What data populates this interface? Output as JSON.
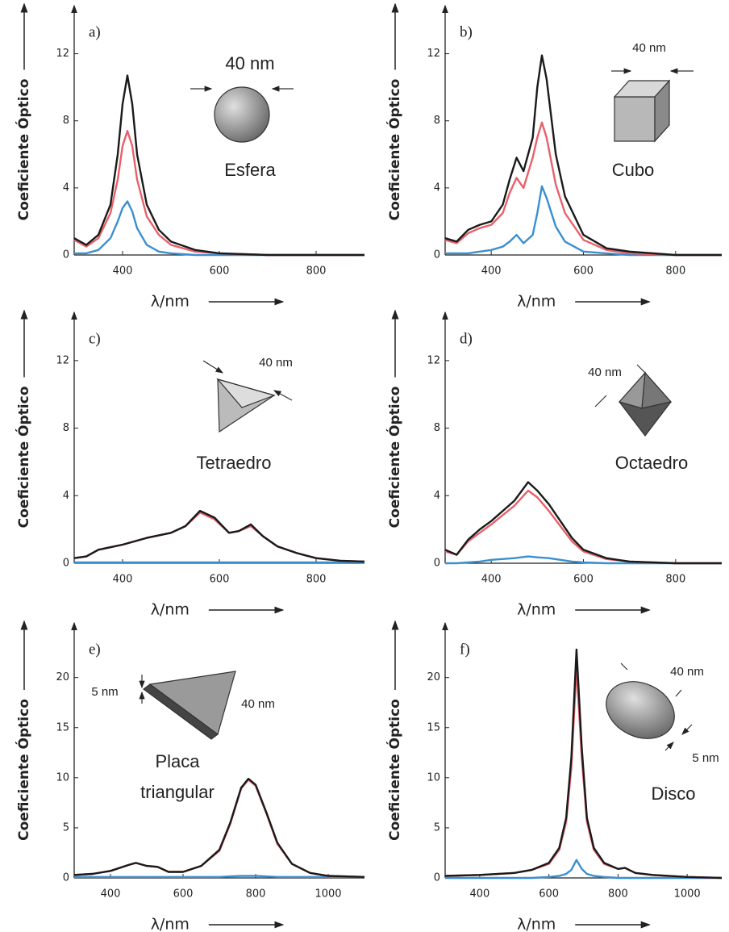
{
  "chart_data": [
    {
      "type": "line",
      "panel_label": "a)",
      "ylabel": "Coeficiente Óptico",
      "xlabel": "λ/nm",
      "annotations": [
        "40 nm",
        "Esfera"
      ],
      "x": [
        300,
        325,
        350,
        375,
        390,
        400,
        410,
        420,
        430,
        450,
        475,
        500,
        550,
        600,
        700,
        800,
        900
      ],
      "series": [
        {
          "color": "#3a8fd0",
          "values": [
            0.1,
            0.1,
            0.3,
            1,
            2,
            2.8,
            3.2,
            2.6,
            1.6,
            0.6,
            0.2,
            0.1,
            0,
            0,
            0,
            0,
            0
          ]
        },
        {
          "color": "#e8606a",
          "values": [
            0.9,
            0.5,
            1,
            2.5,
            4.5,
            6.5,
            7.4,
            6.5,
            4.5,
            2.3,
            1.2,
            0.6,
            0.2,
            0.1,
            0,
            0,
            0
          ]
        },
        {
          "color": "#1a1a1a",
          "values": [
            1,
            0.6,
            1.2,
            3,
            6,
            9,
            10.7,
            9,
            6,
            3,
            1.5,
            0.8,
            0.3,
            0.1,
            0,
            0,
            0
          ]
        }
      ],
      "xlim": [
        300,
        900
      ],
      "ylim": [
        0,
        14
      ],
      "xticks": [
        400,
        600,
        800
      ],
      "yticks": [
        0,
        4,
        8,
        12
      ]
    },
    {
      "type": "line",
      "panel_label": "b)",
      "ylabel": "Coeficiente Óptico",
      "xlabel": "λ/nm",
      "annotations": [
        "40 nm",
        "Cubo"
      ],
      "x": [
        300,
        325,
        350,
        375,
        400,
        425,
        440,
        455,
        470,
        490,
        500,
        510,
        520,
        540,
        560,
        600,
        650,
        700,
        800,
        900
      ],
      "series": [
        {
          "color": "#3a8fd0",
          "values": [
            0.1,
            0.1,
            0.1,
            0.2,
            0.3,
            0.5,
            0.8,
            1.2,
            0.7,
            1.2,
            2.5,
            4.1,
            3.4,
            1.7,
            0.8,
            0.2,
            0.1,
            0,
            0,
            0
          ]
        },
        {
          "color": "#e8606a",
          "values": [
            0.9,
            0.7,
            1.3,
            1.6,
            1.8,
            2.5,
            3.7,
            4.6,
            4,
            5.8,
            7,
            7.9,
            7,
            4.2,
            2.5,
            0.9,
            0.3,
            0.1,
            0,
            0
          ]
        },
        {
          "color": "#1a1a1a",
          "values": [
            1,
            0.8,
            1.5,
            1.8,
            2,
            3,
            4.5,
            5.8,
            5,
            7,
            10,
            11.9,
            10.5,
            6,
            3.5,
            1.2,
            0.4,
            0.2,
            0,
            0
          ]
        }
      ],
      "xlim": [
        300,
        900
      ],
      "ylim": [
        0,
        14
      ],
      "xticks": [
        400,
        600,
        800
      ],
      "yticks": [
        0,
        4,
        8,
        12
      ]
    },
    {
      "type": "line",
      "panel_label": "c)",
      "ylabel": "Coeficiente Óptico",
      "xlabel": "λ/nm",
      "annotations": [
        "40 nm",
        "Tetraedro"
      ],
      "x": [
        300,
        325,
        350,
        400,
        450,
        500,
        530,
        560,
        590,
        620,
        640,
        665,
        690,
        720,
        760,
        800,
        850,
        900
      ],
      "series": [
        {
          "color": "#3a8fd0",
          "values": [
            0.05,
            0.05,
            0.05,
            0.05,
            0.05,
            0.05,
            0.05,
            0.05,
            0.05,
            0.05,
            0.05,
            0.05,
            0.05,
            0.05,
            0.05,
            0.05,
            0.05,
            0.05
          ]
        },
        {
          "color": "#e8606a",
          "values": [
            0.3,
            0.4,
            0.8,
            1.1,
            1.5,
            1.8,
            2.2,
            3,
            2.6,
            1.8,
            1.9,
            2.2,
            1.6,
            1,
            0.6,
            0.3,
            0.15,
            0.1
          ]
        },
        {
          "color": "#1a1a1a",
          "values": [
            0.3,
            0.4,
            0.8,
            1.1,
            1.5,
            1.8,
            2.2,
            3.1,
            2.7,
            1.8,
            1.9,
            2.3,
            1.6,
            1,
            0.6,
            0.3,
            0.15,
            0.1
          ]
        }
      ],
      "xlim": [
        300,
        900
      ],
      "ylim": [
        0,
        14
      ],
      "xticks": [
        400,
        600,
        800
      ],
      "yticks": [
        0,
        4,
        8,
        12
      ]
    },
    {
      "type": "line",
      "panel_label": "d)",
      "ylabel": "Coeficiente Óptico",
      "xlabel": "λ/nm",
      "annotations": [
        "40 nm",
        "Octaedro"
      ],
      "x": [
        300,
        325,
        350,
        375,
        400,
        450,
        480,
        500,
        525,
        550,
        575,
        600,
        650,
        700,
        800,
        900
      ],
      "series": [
        {
          "color": "#3a8fd0",
          "values": [
            0,
            0,
            0.05,
            0.1,
            0.2,
            0.3,
            0.4,
            0.35,
            0.3,
            0.2,
            0.1,
            0.05,
            0,
            0,
            0,
            0
          ]
        },
        {
          "color": "#e8606a",
          "values": [
            0.7,
            0.5,
            1.3,
            1.8,
            2.3,
            3.4,
            4.3,
            3.9,
            3.1,
            2.2,
            1.3,
            0.7,
            0.25,
            0.1,
            0,
            0
          ]
        },
        {
          "color": "#1a1a1a",
          "values": [
            0.8,
            0.5,
            1.4,
            2,
            2.5,
            3.7,
            4.8,
            4.3,
            3.5,
            2.5,
            1.5,
            0.8,
            0.3,
            0.1,
            0,
            0
          ]
        }
      ],
      "xlim": [
        300,
        900
      ],
      "ylim": [
        0,
        14
      ],
      "xticks": [
        400,
        600,
        800
      ],
      "yticks": [
        0,
        4,
        8,
        12
      ]
    },
    {
      "type": "line",
      "panel_label": "e)",
      "ylabel": "Coeficiente Óptico",
      "xlabel": "λ/nm",
      "annotations": [
        "5 nm",
        "40 nm",
        "Placa",
        "triangular"
      ],
      "x": [
        300,
        350,
        400,
        450,
        470,
        500,
        530,
        560,
        600,
        650,
        700,
        730,
        760,
        780,
        800,
        830,
        860,
        900,
        950,
        1000,
        1100
      ],
      "series": [
        {
          "color": "#3a8fd0",
          "values": [
            0.1,
            0.1,
            0.1,
            0.1,
            0.1,
            0.1,
            0.1,
            0.1,
            0.1,
            0.1,
            0.1,
            0.15,
            0.2,
            0.2,
            0.2,
            0.15,
            0.1,
            0.1,
            0.1,
            0.1,
            0.1
          ]
        },
        {
          "color": "#e8606a",
          "values": [
            0.3,
            0.4,
            0.7,
            1.3,
            1.5,
            1.2,
            1.1,
            0.6,
            0.6,
            1.2,
            2.7,
            5.4,
            8.9,
            9.8,
            9.2,
            6.4,
            3.4,
            1.4,
            0.5,
            0.2,
            0.1
          ]
        },
        {
          "color": "#1a1a1a",
          "values": [
            0.3,
            0.4,
            0.7,
            1.3,
            1.5,
            1.2,
            1.1,
            0.6,
            0.6,
            1.2,
            2.8,
            5.5,
            9,
            9.9,
            9.3,
            6.5,
            3.5,
            1.4,
            0.5,
            0.2,
            0.1
          ]
        }
      ],
      "xlim": [
        300,
        1100
      ],
      "ylim": [
        0,
        24
      ],
      "xticks": [
        400,
        600,
        800,
        1000
      ],
      "yticks": [
        0,
        5,
        10,
        15,
        20
      ]
    },
    {
      "type": "line",
      "panel_label": "f)",
      "ylabel": "Coeficiente Óptico",
      "xlabel": "λ/nm",
      "annotations": [
        "40 nm",
        "5 nm",
        "Disco"
      ],
      "x": [
        300,
        400,
        500,
        550,
        600,
        630,
        650,
        665,
        680,
        695,
        710,
        730,
        760,
        800,
        820,
        850,
        900,
        1000,
        1100
      ],
      "series": [
        {
          "color": "#3a8fd0",
          "values": [
            0,
            0,
            0,
            0,
            0.1,
            0.2,
            0.4,
            0.8,
            1.8,
            0.9,
            0.4,
            0.2,
            0.1,
            0,
            0,
            0,
            0,
            0,
            0
          ]
        },
        {
          "color": "#e8606a",
          "values": [
            0.2,
            0.3,
            0.5,
            0.8,
            1.4,
            2.8,
            5.6,
            11,
            21,
            12,
            5.6,
            2.8,
            1.4,
            0.9,
            1,
            0.5,
            0.3,
            0.1,
            0
          ]
        },
        {
          "color": "#1a1a1a",
          "values": [
            0.2,
            0.3,
            0.5,
            0.8,
            1.5,
            3,
            6,
            12,
            22.8,
            13,
            6,
            3,
            1.5,
            0.9,
            1,
            0.5,
            0.3,
            0.1,
            0
          ]
        }
      ],
      "xlim": [
        300,
        1100
      ],
      "ylim": [
        0,
        24
      ],
      "xticks": [
        400,
        600,
        800,
        1000
      ],
      "yticks": [
        0,
        5,
        10,
        15,
        20
      ]
    }
  ]
}
